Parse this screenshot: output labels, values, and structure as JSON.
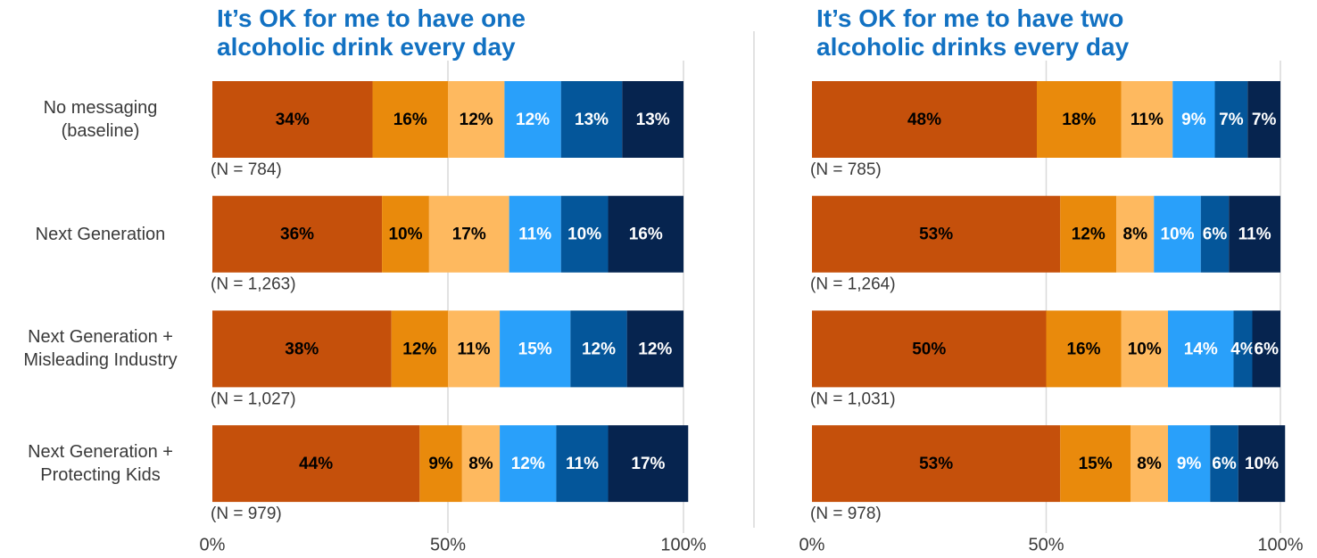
{
  "chart_data": [
    {
      "type": "bar",
      "stacked": true,
      "orientation": "horizontal",
      "title": "It’s OK for me to have one alcoholic drink every day",
      "categories": [
        "No messaging (baseline)",
        "Next Generation",
        "Next Generation + Misleading Industry",
        "Next Generation + Protecting Kids"
      ],
      "annotations": [
        "(N = 784)",
        "(N = 1,263)",
        "(N = 1,027)",
        "(N = 979)"
      ],
      "series": [
        {
          "color": "#c5500b",
          "label_color": "#000000",
          "values": [
            34,
            36,
            38,
            44
          ],
          "value_labels": [
            "34%",
            "36%",
            "38%",
            "44%"
          ]
        },
        {
          "color": "#e98a0c",
          "label_color": "#000000",
          "values": [
            16,
            10,
            12,
            9
          ],
          "value_labels": [
            "16%",
            "10%",
            "12%",
            "9%"
          ]
        },
        {
          "color": "#feb95f",
          "label_color": "#000000",
          "values": [
            12,
            17,
            11,
            8
          ],
          "value_labels": [
            "12%",
            "17%",
            "11%",
            "8%"
          ]
        },
        {
          "color": "#29a0fa",
          "label_color": "#ffffff",
          "values": [
            12,
            11,
            15,
            12
          ],
          "value_labels": [
            "12%",
            "11%",
            "15%",
            "12%"
          ]
        },
        {
          "color": "#04569a",
          "label_color": "#ffffff",
          "values": [
            13,
            10,
            12,
            11
          ],
          "value_labels": [
            "13%",
            "10%",
            "12%",
            "11%"
          ]
        },
        {
          "color": "#06244f",
          "label_color": "#ffffff",
          "values": [
            13,
            16,
            12,
            17
          ],
          "value_labels": [
            "13%",
            "16%",
            "12%",
            "17%"
          ]
        }
      ],
      "xlim": [
        0,
        100
      ],
      "xticks": [
        {
          "value": 0,
          "label": "0%"
        },
        {
          "value": 50,
          "label": "50%"
        },
        {
          "value": 100,
          "label": "100%"
        }
      ],
      "grid": true
    },
    {
      "type": "bar",
      "stacked": true,
      "orientation": "horizontal",
      "title": "It’s OK for me to have two alcoholic drinks every day",
      "categories": [
        null,
        null,
        null,
        null
      ],
      "annotations": [
        "(N = 785)",
        "(N = 1,264)",
        "(N = 1,031)",
        "(N = 978)"
      ],
      "series": [
        {
          "color": "#c5500b",
          "label_color": "#000000",
          "values": [
            48,
            53,
            50,
            53
          ],
          "value_labels": [
            "48%",
            "53%",
            "50%",
            "53%"
          ]
        },
        {
          "color": "#e98a0c",
          "label_color": "#000000",
          "values": [
            18,
            12,
            16,
            15
          ],
          "value_labels": [
            "18%",
            "12%",
            "16%",
            "15%"
          ]
        },
        {
          "color": "#feb95f",
          "label_color": "#000000",
          "values": [
            11,
            8,
            10,
            8
          ],
          "value_labels": [
            "11%",
            "8%",
            "10%",
            "8%"
          ]
        },
        {
          "color": "#29a0fa",
          "label_color": "#ffffff",
          "values": [
            9,
            10,
            14,
            9
          ],
          "value_labels": [
            "9%",
            "10%",
            "14%",
            "9%"
          ]
        },
        {
          "color": "#04569a",
          "label_color": "#ffffff",
          "values": [
            7,
            6,
            4,
            6
          ],
          "value_labels": [
            "7%",
            "6%",
            "4%",
            "6%"
          ]
        },
        {
          "color": "#06244f",
          "label_color": "#ffffff",
          "values": [
            7,
            11,
            6,
            10
          ],
          "value_labels": [
            "7%",
            "11%",
            "6%",
            "10%"
          ]
        }
      ],
      "xlim": [
        0,
        100
      ],
      "xticks": [
        {
          "value": 0,
          "label": "0%"
        },
        {
          "value": 50,
          "label": "50%"
        },
        {
          "value": 100,
          "label": "100%"
        }
      ],
      "grid": true
    }
  ]
}
